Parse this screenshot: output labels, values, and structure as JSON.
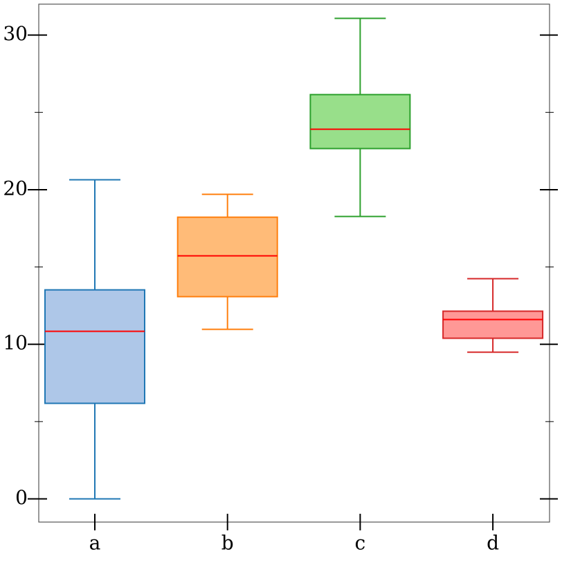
{
  "chart_data": {
    "type": "box",
    "categories": [
      "a",
      "b",
      "c",
      "d"
    ],
    "boxes": [
      {
        "whislo": 0,
        "q1": 6.18,
        "med": 10.84,
        "q3": 13.52,
        "whishi": 20.64,
        "color": "#1f77b4",
        "fill": "#aec7e8"
      },
      {
        "whislo": 10.97,
        "q1": 13.08,
        "med": 15.72,
        "q3": 18.22,
        "whishi": 19.7,
        "color": "#ff7f0e",
        "fill": "#ffbb78"
      },
      {
        "whislo": 18.27,
        "q1": 22.66,
        "med": 23.91,
        "q3": 26.15,
        "whishi": 31.08,
        "color": "#2ca02c",
        "fill": "#98df8a"
      },
      {
        "whislo": 9.49,
        "q1": 10.39,
        "med": 11.6,
        "q3": 12.14,
        "whishi": 14.24,
        "color": "#d62728",
        "fill": "#ff9896"
      }
    ],
    "median_color": "#ff0000",
    "ylim": [
      -1.5,
      32
    ],
    "yticks": [
      0,
      10,
      20,
      30
    ],
    "yminorticks": [
      5,
      15,
      25
    ]
  }
}
